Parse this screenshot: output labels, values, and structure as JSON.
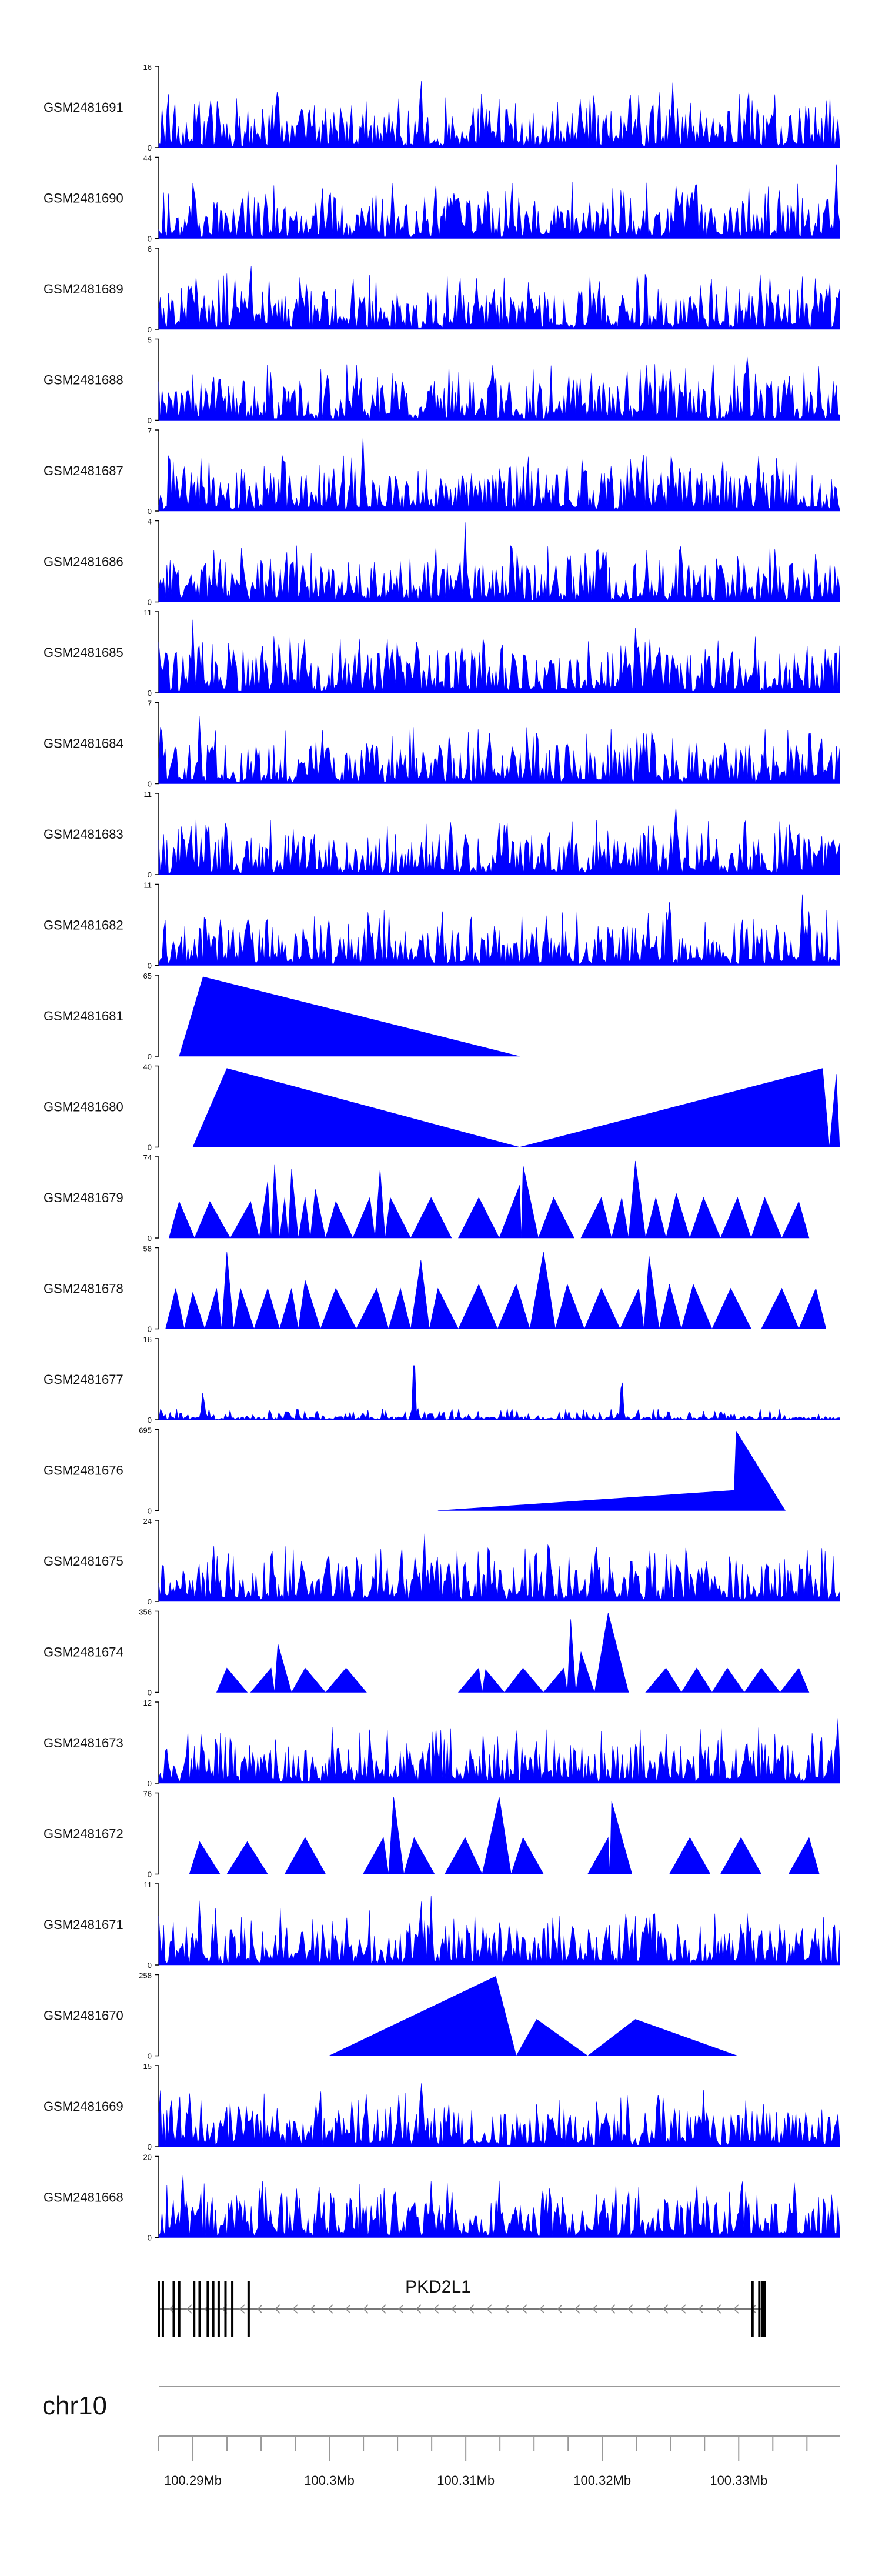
{
  "chart_data": {
    "type": "area",
    "color": "#0000ff",
    "tracks": [
      {
        "name": "GSM2481691",
        "ymax": "16",
        "ymin": "0",
        "style": "dense",
        "peaks": [
          {
            "x": 0.385,
            "v": 1.0
          },
          {
            "x": 0.755,
            "v": 0.85
          },
          {
            "x": 0.62,
            "v": 0.55
          }
        ]
      },
      {
        "name": "GSM2481690",
        "ymax": "44",
        "ymin": "0",
        "style": "dense",
        "peaks": [
          {
            "x": 0.24,
            "v": 0.7
          },
          {
            "x": 0.995,
            "v": 0.97
          },
          {
            "x": 0.47,
            "v": 0.55
          }
        ]
      },
      {
        "name": "GSM2481689",
        "ymax": "6",
        "ymin": "0",
        "style": "dense",
        "peaks": [
          {
            "x": 0.135,
            "v": 0.95
          },
          {
            "x": 0.285,
            "v": 0.75
          }
        ]
      },
      {
        "name": "GSM2481688",
        "ymax": "5",
        "ymin": "0",
        "style": "dense",
        "peaks": [
          {
            "x": 0.865,
            "v": 0.95
          },
          {
            "x": 0.08,
            "v": 0.7
          },
          {
            "x": 0.515,
            "v": 0.6
          }
        ]
      },
      {
        "name": "GSM2481687",
        "ymax": "7",
        "ymin": "0",
        "style": "dense",
        "peaks": [
          {
            "x": 0.3,
            "v": 0.92
          },
          {
            "x": 0.78,
            "v": 0.7
          }
        ]
      },
      {
        "name": "GSM2481686",
        "ymax": "4",
        "ymin": "0",
        "style": "dense",
        "peaks": [
          {
            "x": 0.45,
            "v": 0.98
          },
          {
            "x": 0.09,
            "v": 0.6
          }
        ]
      },
      {
        "name": "GSM2481685",
        "ymax": "11",
        "ymin": "0",
        "style": "dense",
        "peaks": [
          {
            "x": 0.05,
            "v": 0.9
          },
          {
            "x": 0.7,
            "v": 0.8
          }
        ]
      },
      {
        "name": "GSM2481684",
        "ymax": "7",
        "ymin": "0",
        "style": "dense",
        "peaks": [
          {
            "x": 0.06,
            "v": 0.95
          },
          {
            "x": 0.52,
            "v": 0.6
          }
        ]
      },
      {
        "name": "GSM2481683",
        "ymax": "11",
        "ymin": "0",
        "style": "dense",
        "peaks": [
          {
            "x": 0.76,
            "v": 0.95
          },
          {
            "x": 0.07,
            "v": 0.8
          }
        ]
      },
      {
        "name": "GSM2481682",
        "ymax": "11",
        "ymin": "0",
        "style": "dense",
        "peaks": [
          {
            "x": 0.945,
            "v": 0.93
          },
          {
            "x": 0.13,
            "v": 0.75
          },
          {
            "x": 0.75,
            "v": 0.78
          }
        ]
      },
      {
        "name": "GSM2481681",
        "ymax": "65",
        "ymin": "0",
        "style": "poly",
        "points": [
          [
            0.03,
            0.0
          ],
          [
            0.065,
            0.98
          ],
          [
            0.53,
            0.0
          ]
        ]
      },
      {
        "name": "GSM2481680",
        "ymax": "40",
        "ymin": "0",
        "style": "poly",
        "points": [
          [
            0.05,
            0.0
          ],
          [
            0.1,
            0.97
          ],
          [
            0.53,
            0.0
          ],
          [
            0.975,
            0.97
          ],
          [
            0.985,
            0.0
          ],
          [
            0.995,
            0.9
          ],
          [
            1.0,
            0.0
          ]
        ]
      },
      {
        "name": "GSM2481679",
        "ymax": "74",
        "ymin": "0",
        "style": "tri",
        "peaks": [
          {
            "x": 0.03,
            "v": 0.45
          },
          {
            "x": 0.075,
            "v": 0.45
          },
          {
            "x": 0.135,
            "v": 0.45
          },
          {
            "x": 0.16,
            "v": 0.7
          },
          {
            "x": 0.17,
            "v": 0.9
          },
          {
            "x": 0.185,
            "v": 0.5
          },
          {
            "x": 0.195,
            "v": 0.85
          },
          {
            "x": 0.215,
            "v": 0.5
          },
          {
            "x": 0.23,
            "v": 0.6
          },
          {
            "x": 0.26,
            "v": 0.45
          },
          {
            "x": 0.31,
            "v": 0.5
          },
          {
            "x": 0.325,
            "v": 0.85
          },
          {
            "x": 0.34,
            "v": 0.5
          },
          {
            "x": 0.4,
            "v": 0.5
          },
          {
            "x": 0.47,
            "v": 0.5
          },
          {
            "x": 0.53,
            "v": 0.65
          },
          {
            "x": 0.535,
            "v": 0.9
          },
          {
            "x": 0.58,
            "v": 0.5
          },
          {
            "x": 0.65,
            "v": 0.5
          },
          {
            "x": 0.68,
            "v": 0.5
          },
          {
            "x": 0.7,
            "v": 0.95
          },
          {
            "x": 0.73,
            "v": 0.5
          },
          {
            "x": 0.76,
            "v": 0.55
          },
          {
            "x": 0.8,
            "v": 0.5
          },
          {
            "x": 0.85,
            "v": 0.5
          },
          {
            "x": 0.89,
            "v": 0.5
          },
          {
            "x": 0.94,
            "v": 0.45
          }
        ]
      },
      {
        "name": "GSM2481678",
        "ymax": "58",
        "ymin": "0",
        "style": "tri",
        "peaks": [
          {
            "x": 0.025,
            "v": 0.5
          },
          {
            "x": 0.05,
            "v": 0.45
          },
          {
            "x": 0.085,
            "v": 0.5
          },
          {
            "x": 0.1,
            "v": 0.95
          },
          {
            "x": 0.12,
            "v": 0.5
          },
          {
            "x": 0.16,
            "v": 0.5
          },
          {
            "x": 0.195,
            "v": 0.5
          },
          {
            "x": 0.215,
            "v": 0.6
          },
          {
            "x": 0.26,
            "v": 0.5
          },
          {
            "x": 0.32,
            "v": 0.5
          },
          {
            "x": 0.355,
            "v": 0.5
          },
          {
            "x": 0.385,
            "v": 0.85
          },
          {
            "x": 0.41,
            "v": 0.5
          },
          {
            "x": 0.47,
            "v": 0.55
          },
          {
            "x": 0.525,
            "v": 0.55
          },
          {
            "x": 0.565,
            "v": 0.95
          },
          {
            "x": 0.6,
            "v": 0.55
          },
          {
            "x": 0.65,
            "v": 0.5
          },
          {
            "x": 0.705,
            "v": 0.5
          },
          {
            "x": 0.72,
            "v": 0.9
          },
          {
            "x": 0.75,
            "v": 0.55
          },
          {
            "x": 0.785,
            "v": 0.55
          },
          {
            "x": 0.84,
            "v": 0.5
          },
          {
            "x": 0.915,
            "v": 0.5
          },
          {
            "x": 0.965,
            "v": 0.5
          }
        ]
      },
      {
        "name": "GSM2481677",
        "ymax": "16",
        "ymin": "0",
        "style": "sparse",
        "peaks": [
          {
            "x": 0.375,
            "v": 0.95
          },
          {
            "x": 0.68,
            "v": 0.6
          },
          {
            "x": 0.065,
            "v": 0.4
          }
        ]
      },
      {
        "name": "GSM2481676",
        "ymax": "695",
        "ymin": "0",
        "style": "poly",
        "points": [
          [
            0.41,
            0.0
          ],
          [
            0.845,
            0.25
          ],
          [
            0.848,
            0.98
          ],
          [
            0.92,
            0.0
          ]
        ]
      },
      {
        "name": "GSM2481675",
        "ymax": "24",
        "ymin": "0",
        "style": "dense",
        "peaks": [
          {
            "x": 0.39,
            "v": 0.95
          },
          {
            "x": 0.47,
            "v": 0.5
          }
        ]
      },
      {
        "name": "GSM2481674",
        "ymax": "356",
        "ymin": "0",
        "style": "tri",
        "peaks": [
          {
            "x": 0.1,
            "v": 0.3
          },
          {
            "x": 0.165,
            "v": 0.3
          },
          {
            "x": 0.175,
            "v": 0.6
          },
          {
            "x": 0.215,
            "v": 0.3
          },
          {
            "x": 0.275,
            "v": 0.3
          },
          {
            "x": 0.47,
            "v": 0.3
          },
          {
            "x": 0.48,
            "v": 0.28
          },
          {
            "x": 0.535,
            "v": 0.3
          },
          {
            "x": 0.595,
            "v": 0.3
          },
          {
            "x": 0.605,
            "v": 0.9
          },
          {
            "x": 0.62,
            "v": 0.5
          },
          {
            "x": 0.66,
            "v": 0.98
          },
          {
            "x": 0.745,
            "v": 0.3
          },
          {
            "x": 0.79,
            "v": 0.3
          },
          {
            "x": 0.835,
            "v": 0.3
          },
          {
            "x": 0.885,
            "v": 0.3
          },
          {
            "x": 0.94,
            "v": 0.3
          }
        ]
      },
      {
        "name": "GSM2481673",
        "ymax": "12",
        "ymin": "0",
        "style": "dense",
        "peaks": [
          {
            "x": 0.997,
            "v": 0.95
          },
          {
            "x": 0.31,
            "v": 0.75
          }
        ]
      },
      {
        "name": "GSM2481672",
        "ymax": "76",
        "ymin": "0",
        "style": "tri",
        "peaks": [
          {
            "x": 0.06,
            "v": 0.4
          },
          {
            "x": 0.13,
            "v": 0.4
          },
          {
            "x": 0.215,
            "v": 0.45
          },
          {
            "x": 0.33,
            "v": 0.45
          },
          {
            "x": 0.345,
            "v": 0.95
          },
          {
            "x": 0.375,
            "v": 0.45
          },
          {
            "x": 0.45,
            "v": 0.45
          },
          {
            "x": 0.5,
            "v": 0.95
          },
          {
            "x": 0.535,
            "v": 0.45
          },
          {
            "x": 0.66,
            "v": 0.45
          },
          {
            "x": 0.665,
            "v": 0.9
          },
          {
            "x": 0.78,
            "v": 0.45
          },
          {
            "x": 0.855,
            "v": 0.45
          },
          {
            "x": 0.955,
            "v": 0.45
          }
        ]
      },
      {
        "name": "GSM2481671",
        "ymax": "11",
        "ymin": "0",
        "style": "dense",
        "peaks": [
          {
            "x": 0.06,
            "v": 0.9
          },
          {
            "x": 0.385,
            "v": 0.95
          },
          {
            "x": 0.4,
            "v": 0.85
          }
        ]
      },
      {
        "name": "GSM2481670",
        "ymax": "258",
        "ymin": "0",
        "style": "poly",
        "points": [
          [
            0.25,
            0.0
          ],
          [
            0.495,
            0.98
          ],
          [
            0.525,
            0.0
          ],
          [
            0.555,
            0.45
          ],
          [
            0.63,
            0.0
          ],
          [
            0.7,
            0.45
          ],
          [
            0.85,
            0.0
          ]
        ]
      },
      {
        "name": "GSM2481669",
        "ymax": "15",
        "ymin": "0",
        "style": "dense",
        "peaks": [
          {
            "x": 0.385,
            "v": 0.95
          },
          {
            "x": 0.8,
            "v": 0.7
          }
        ]
      },
      {
        "name": "GSM2481668",
        "ymax": "20",
        "ymin": "0",
        "style": "dense",
        "peaks": [
          {
            "x": 0.035,
            "v": 0.95
          },
          {
            "x": 0.5,
            "v": 0.7
          }
        ]
      }
    ],
    "gene": {
      "name": "PKD2L1",
      "strand": "-",
      "exon_positions": [
        0.0,
        0.006,
        0.022,
        0.03,
        0.052,
        0.06,
        0.072,
        0.08,
        0.088,
        0.098,
        0.108,
        0.132,
        0.872,
        0.882,
        0.888
      ]
    },
    "axis": {
      "chromosome": "chr10",
      "start_mb": 100.2875,
      "end_mb": 100.3374,
      "major_ticks": [
        {
          "value": 100.29,
          "label": "100.29Mb"
        },
        {
          "value": 100.3,
          "label": "100.3Mb"
        },
        {
          "value": 100.31,
          "label": "100.31Mb"
        },
        {
          "value": 100.32,
          "label": "100.32Mb"
        },
        {
          "value": 100.33,
          "label": "100.33Mb"
        }
      ],
      "minor_step_mb": 0.0025
    }
  }
}
